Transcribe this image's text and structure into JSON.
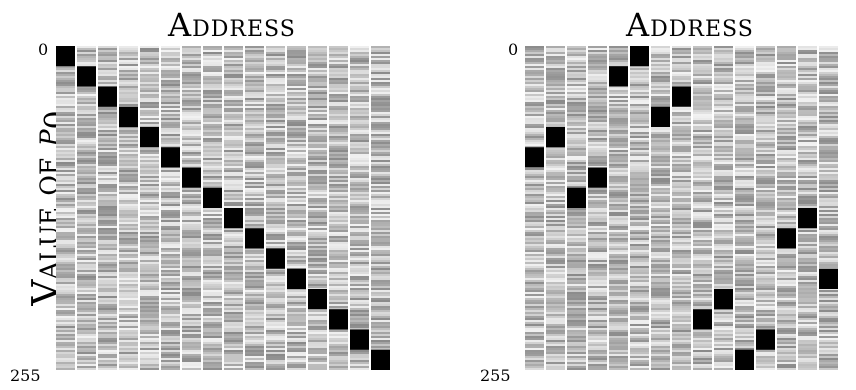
{
  "chart_data": [
    {
      "type": "heatmap",
      "title": "Address",
      "ylabel_text": "Value of ",
      "ylabel_var": "p",
      "ylabel_sub": "0",
      "y_ticks": [
        "0",
        "255"
      ],
      "ylim": [
        0,
        255
      ],
      "num_columns": 16,
      "highlight": "black cell marks the maximum per column",
      "max_rows": [
        0,
        16,
        32,
        48,
        64,
        80,
        96,
        112,
        128,
        144,
        160,
        176,
        192,
        208,
        224,
        240
      ]
    },
    {
      "type": "heatmap",
      "title": "Address",
      "y_ticks": [
        "0",
        "255"
      ],
      "ylim": [
        0,
        255
      ],
      "num_columns": 15,
      "highlight": "black cell marks the maximum per column",
      "max_rows": [
        80,
        64,
        112,
        96,
        16,
        0,
        48,
        32,
        208,
        192,
        240,
        224,
        144,
        128,
        176
      ]
    }
  ],
  "colors": {
    "maximum": "#000000",
    "noise_dark": "#8a8a8a",
    "noise_light": "#f2f2f2",
    "background": "#ffffff"
  }
}
